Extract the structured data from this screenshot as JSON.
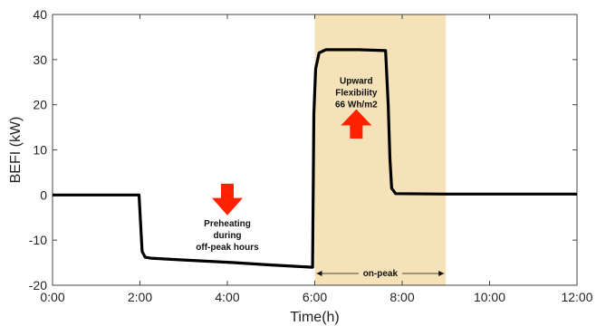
{
  "chart_data": {
    "type": "line",
    "title": "",
    "xlabel": "Time(h)",
    "ylabel": "BEFI (kW)",
    "xlim": [
      0,
      12
    ],
    "ylim": [
      -20,
      40
    ],
    "x_ticks": [
      0,
      2,
      4,
      6,
      8,
      10,
      12
    ],
    "x_tick_labels": [
      "0:00",
      "2:00",
      "4:00",
      "6:00",
      "8:00",
      "10:00",
      "12:00"
    ],
    "y_ticks": [
      -20,
      -10,
      0,
      10,
      20,
      30,
      40
    ],
    "y_tick_labels": [
      "-20",
      "-10",
      "0",
      "10",
      "20",
      "30",
      "40"
    ],
    "grid": false,
    "series": [
      {
        "color": "#000000",
        "x": [
          0,
          1.98,
          2.05,
          2.12,
          2.25,
          3.0,
          4.0,
          5.0,
          5.95,
          5.98,
          6.02,
          6.1,
          6.25,
          7.0,
          7.62,
          7.68,
          7.72,
          7.76,
          7.85,
          9.0,
          12.0
        ],
        "y": [
          0,
          0,
          -12.5,
          -13.8,
          -14.0,
          -14.4,
          -14.9,
          -15.5,
          -16.0,
          18.0,
          28.0,
          31.5,
          32.2,
          32.2,
          32.0,
          20.0,
          8.0,
          1.5,
          0.3,
          0.2,
          0.2
        ]
      }
    ],
    "on_peak_region": {
      "x_start": 6,
      "x_end": 9,
      "color": "#f5e2b8",
      "label": "on-peak"
    },
    "annotations": [
      {
        "lines": [
          "Preheating",
          "during",
          "off-peak hours"
        ],
        "x": 4.0,
        "y": -7.0
      },
      {
        "lines": [
          "Upward",
          "Flexibility",
          "66 Wh/m2"
        ],
        "x": 6.95,
        "y": 24.6
      }
    ],
    "arrows": [
      {
        "direction": "down",
        "color": "#ff2200",
        "x": 4.0,
        "y_top": 2.5,
        "y_bottom": -4.5
      },
      {
        "direction": "up",
        "color": "#ff2200",
        "x": 6.95,
        "y_top": 19.0,
        "y_bottom": 12.5
      }
    ]
  }
}
